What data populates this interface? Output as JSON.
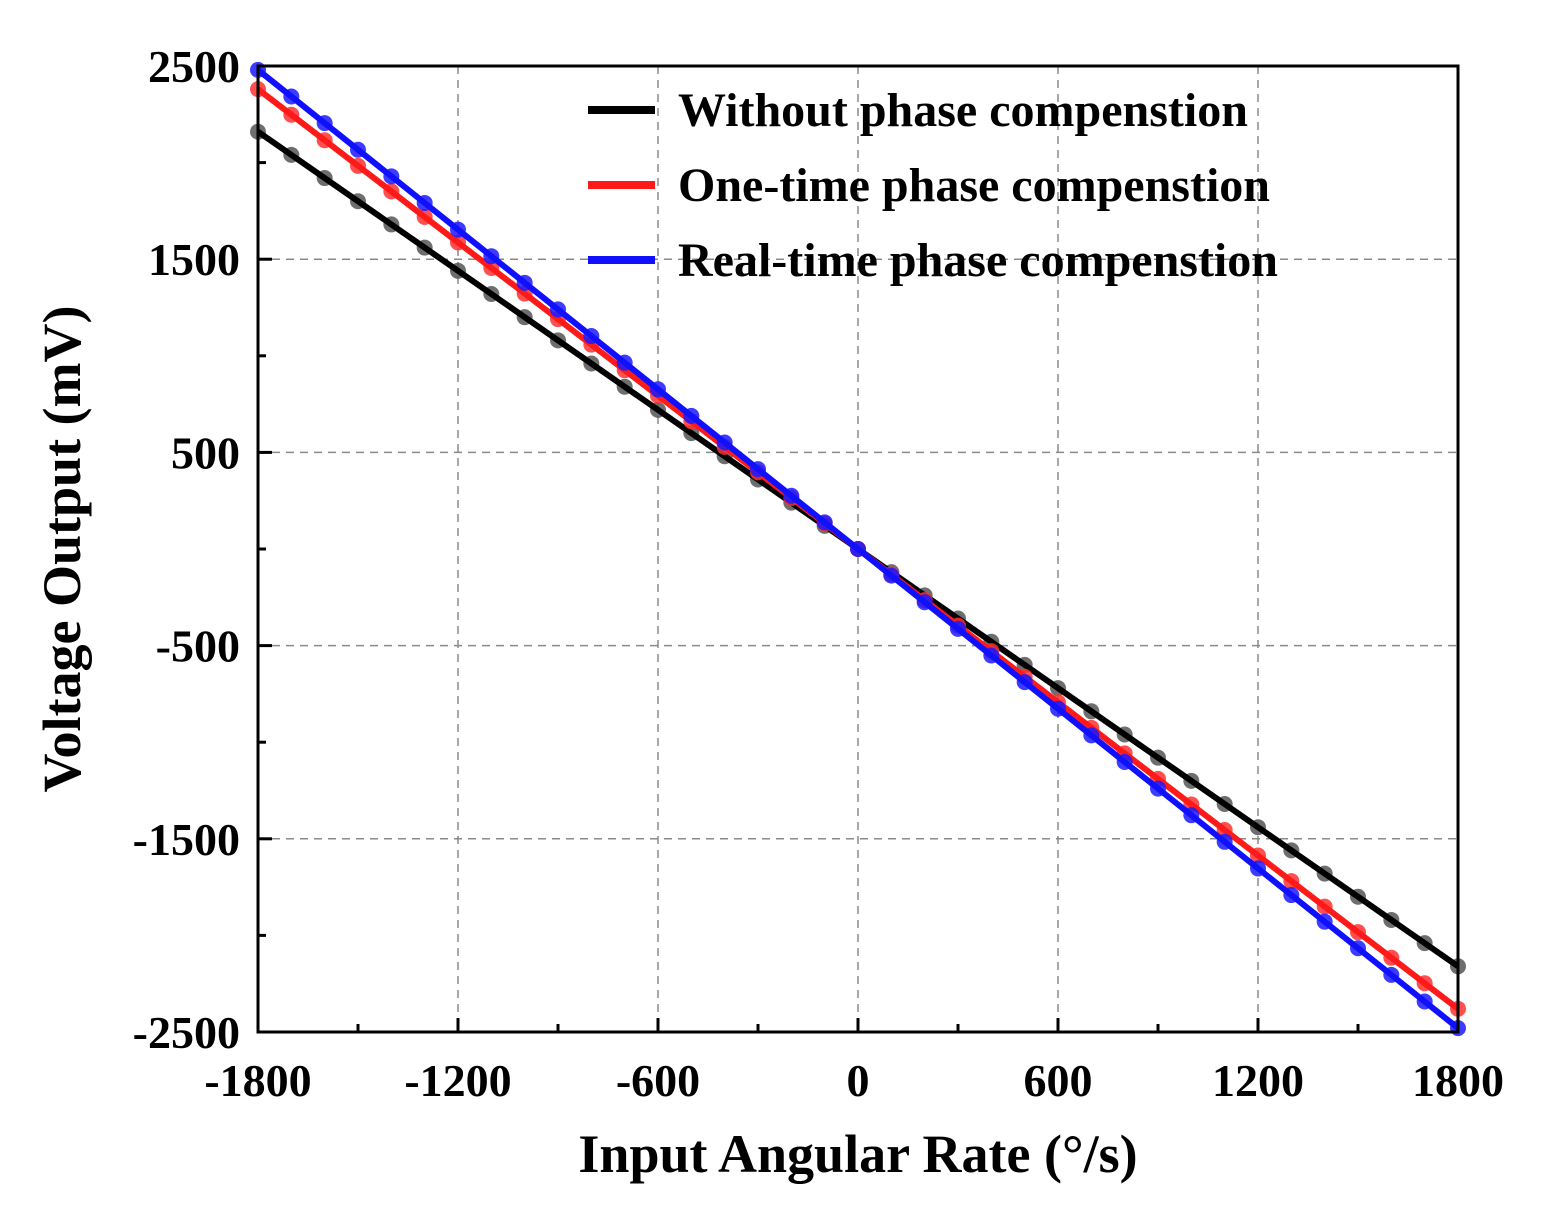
{
  "chart_data": {
    "type": "line",
    "title": "",
    "xlabel": "Input Angular Rate (°/s)",
    "ylabel": "Voltage Output (mV)",
    "xlim": [
      -1800,
      1800
    ],
    "ylim": [
      -2500,
      2500
    ],
    "xticks": [
      -1800,
      -1200,
      -600,
      0,
      600,
      1200,
      1800
    ],
    "xtick_labels": [
      "-1800",
      "-1200",
      "-600",
      "0",
      "600",
      "1200",
      "1800"
    ],
    "yticks": [
      2500,
      1500,
      500,
      -500,
      -1500,
      -2500
    ],
    "ytick_labels": [
      "2500",
      "1500",
      "500",
      "-500",
      "-1500",
      "-2500"
    ],
    "minor_xticks": [
      -1500,
      -900,
      -300,
      300,
      900,
      1500
    ],
    "minor_yticks": [
      2000,
      1000,
      0,
      -1000,
      -2000
    ],
    "grid": true,
    "legend_position": "top-right",
    "marker_step": 100,
    "series": [
      {
        "name": "Without phase compenstion",
        "color": "#000000",
        "marker_color": "#555555",
        "x": [
          -1800,
          1800
        ],
        "y": [
          2160,
          -2160
        ]
      },
      {
        "name": "One-time  phase compenstion",
        "color": "#ff1a1a",
        "marker_color": "#ff3030",
        "x": [
          -1800,
          1800
        ],
        "y": [
          2380,
          -2380
        ]
      },
      {
        "name": "Real-time  phase compenstion",
        "color": "#1010ff",
        "marker_color": "#1a1aff",
        "x": [
          -1800,
          1800
        ],
        "y": [
          2480,
          -2480
        ]
      }
    ]
  }
}
